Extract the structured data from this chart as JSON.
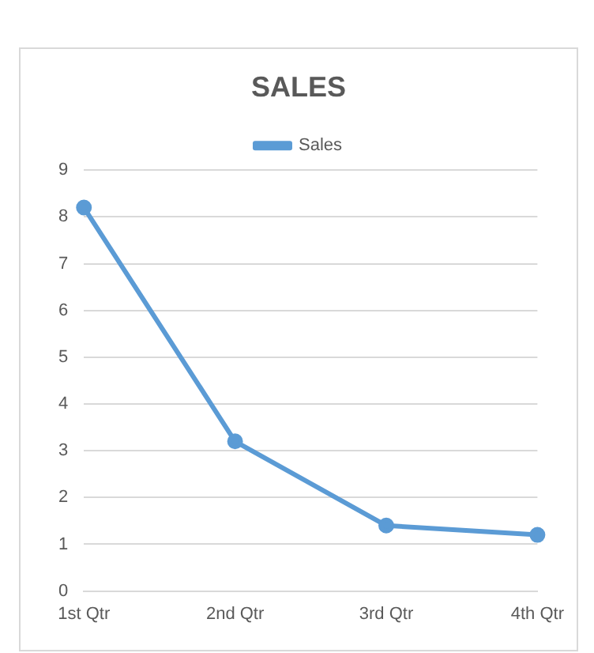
{
  "chart_data": {
    "type": "line",
    "title": "SALES",
    "categories": [
      "1st Qtr",
      "2nd Qtr",
      "3rd Qtr",
      "4th Qtr"
    ],
    "series": [
      {
        "name": "Sales",
        "color": "#5b9bd5",
        "values": [
          8.2,
          3.2,
          1.4,
          1.2
        ]
      }
    ],
    "ylim": [
      0,
      9
    ],
    "yticks": [
      0,
      1,
      2,
      3,
      4,
      5,
      6,
      7,
      8,
      9
    ],
    "grid": "y",
    "legend": "top",
    "marker": "circle",
    "line_style": "solid"
  }
}
